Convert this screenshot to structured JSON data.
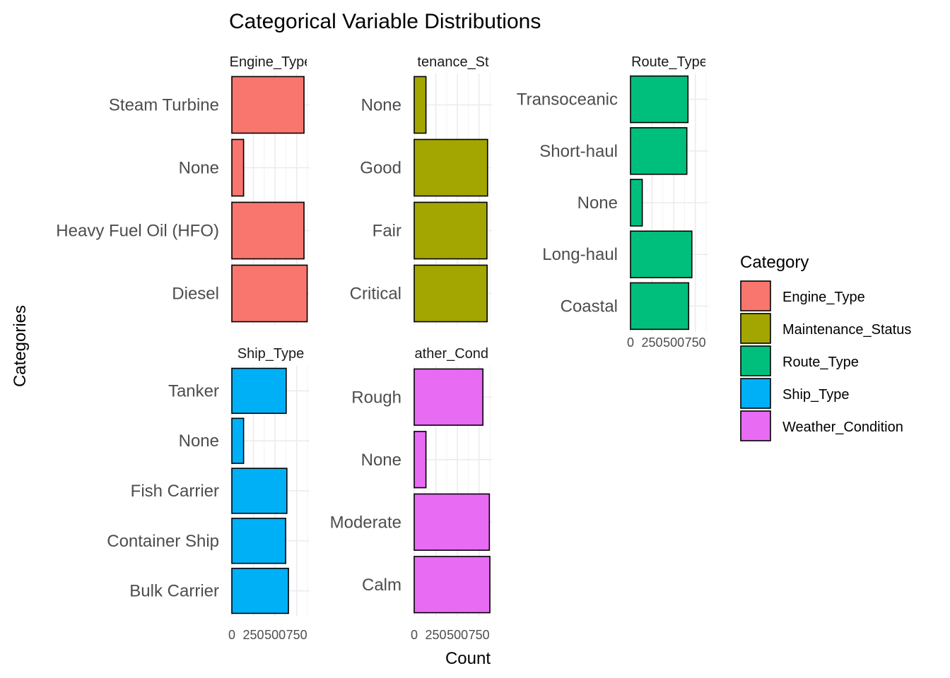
{
  "chart_data": {
    "type": "bar",
    "orientation": "horizontal",
    "title": "Categorical Variable Distributions",
    "xlabel": "Count",
    "ylabel": "Categories",
    "xlim": [
      0,
      900
    ],
    "x_ticks": [
      0,
      250,
      500,
      750
    ],
    "x_tick_labels": [
      "0",
      "250",
      "500",
      "750"
    ],
    "grid": true,
    "legend": {
      "title": "Category",
      "placement": "right",
      "entries": [
        "Engine_Type",
        "Maintenance_Status",
        "Route_Type",
        "Ship_Type",
        "Weather_Condition"
      ]
    },
    "colors": {
      "Engine_Type": "#F8766D",
      "Maintenance_Status": "#A3A500",
      "Route_Type": "#00BF7D",
      "Ship_Type": "#00B0F6",
      "Weather_Condition": "#E76BF3"
    },
    "facets": [
      {
        "strip": "Engine_Type",
        "visible_strip": "Engine_Type",
        "categories": [
          "Steam Turbine",
          "None",
          "Heavy Fuel Oil (HFO)",
          "Diesel"
        ],
        "values": [
          835,
          136,
          835,
          872
        ]
      },
      {
        "strip": "Maintenance_Status",
        "visible_strip": "tenance_St",
        "categories": [
          "None",
          "Good",
          "Fair",
          "Critical"
        ],
        "values": [
          136,
          849,
          842,
          844
        ]
      },
      {
        "strip": "Route_Type",
        "visible_strip": "Route_Type",
        "categories": [
          "Transoceanic",
          "Short-haul",
          "None",
          "Long-haul",
          "Coastal"
        ],
        "values": [
          665,
          652,
          136,
          710,
          673
        ]
      },
      {
        "strip": "Ship_Type",
        "visible_strip": "Ship_Type",
        "categories": [
          "Tanker",
          "None",
          "Fish Carrier",
          "Container Ship",
          "Bulk Carrier"
        ],
        "values": [
          629,
          136,
          637,
          623,
          655
        ]
      },
      {
        "strip": "Weather_Condition",
        "visible_strip": "ather_Condi",
        "categories": [
          "Rough",
          "None",
          "Moderate",
          "Calm"
        ],
        "values": [
          795,
          136,
          870,
          876
        ]
      }
    ]
  }
}
